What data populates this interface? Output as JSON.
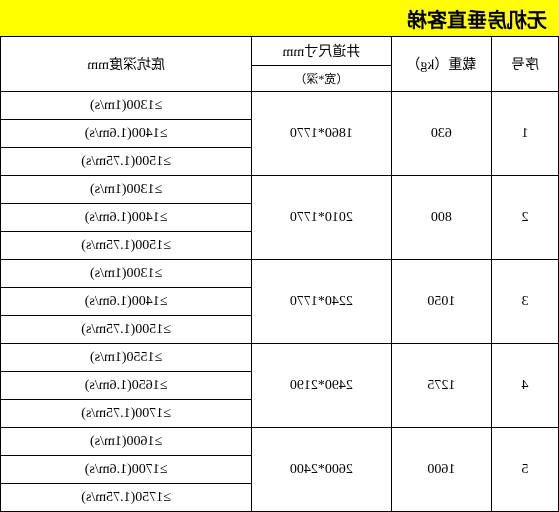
{
  "title": "无机房垂直客梯",
  "background_color": "#ffffff",
  "title_bg": "#ffff00",
  "border_color": "#000000",
  "headers": {
    "seq": "序号",
    "load": "载重（kg）",
    "dim": "井道尺寸mm",
    "dim_sub": "（宽*深）",
    "depth": "底坑深度mm"
  },
  "rows": [
    {
      "seq": "1",
      "load": "630",
      "dim": "1860*1770",
      "depths": [
        "≥1300(1m/s)",
        "≥1400(1.6m/s)",
        "≥1500(1.75m/s)"
      ]
    },
    {
      "seq": "2",
      "load": "800",
      "dim": "2010*1770",
      "depths": [
        "≥1300(1m/s)",
        "≥1400(1.6m/s)",
        "≥1500(1.75m/s)"
      ]
    },
    {
      "seq": "3",
      "load": "1050",
      "dim": "2240*1770",
      "depths": [
        "≥1300(1m/s)",
        "≥1400(1.6m/s)",
        "≥1500(1.75m/s)"
      ]
    },
    {
      "seq": "4",
      "load": "1275",
      "dim": "2490*2190",
      "depths": [
        "≥1550(1m/s)",
        "≥1650(1.6m/s)",
        "≥1700(1.75m/s)"
      ]
    },
    {
      "seq": "5",
      "load": "1600",
      "dim": "2600*2400",
      "depths": [
        "≥1600(1m/s)",
        "≥1700(1.6m/s)",
        "≥1750(1.75m/s)"
      ]
    }
  ]
}
